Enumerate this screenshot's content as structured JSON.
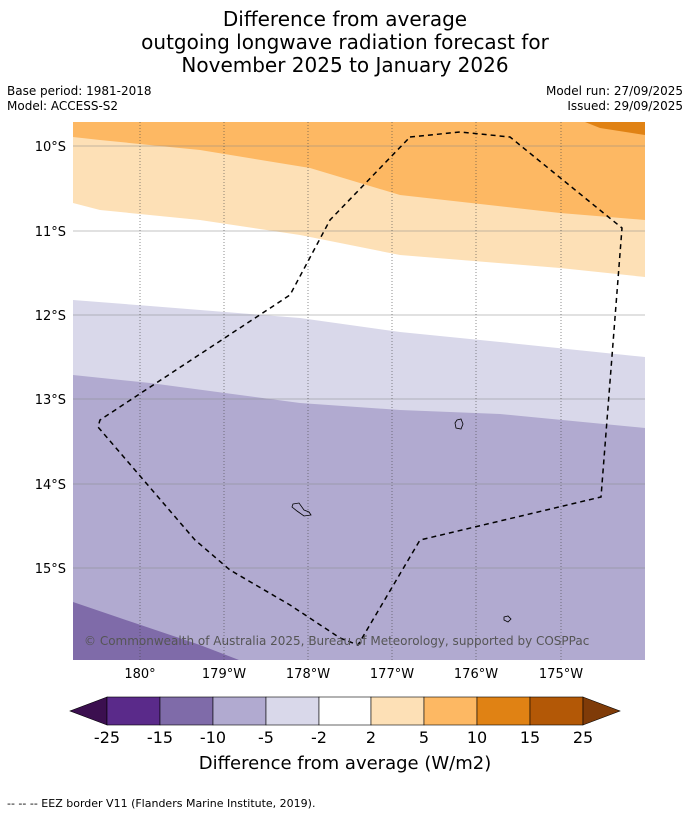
{
  "title": {
    "line1": "Difference from average",
    "line2": "outgoing longwave radiation forecast for",
    "line3": "November 2025 to January 2026"
  },
  "meta": {
    "base_period": "Base period: 1981-2018",
    "model": "Model: ACCESS-S2",
    "model_run": "Model run: 27/09/2025",
    "issued": "Issued: 29/09/2025"
  },
  "map": {
    "lat_labels": [
      "10°S",
      "11°S",
      "12°S",
      "13°S",
      "14°S",
      "15°S"
    ],
    "lon_labels": [
      "180°",
      "179°W",
      "178°W",
      "177°W",
      "176°W",
      "175°W"
    ],
    "copyright": "© Commonwealth of Australia 2025, Bureau of Meteorology, supported by COSPPac",
    "eez_note": "--  --  -- EEZ border V11 (Flanders Marine Institute, 2019)."
  },
  "colorbar": {
    "title": "Difference from average (W/m2)",
    "ticks": [
      "-25",
      "-15",
      "-10",
      "-5",
      "-2",
      "2",
      "5",
      "10",
      "15",
      "25"
    ],
    "colors": {
      "under": "#3b0f4f",
      "bins": [
        "#5a2a8a",
        "#7f6ba9",
        "#b1aad0",
        "#d9d8ea",
        "#ffffff",
        "#fde0b6",
        "#fdb863",
        "#e08214",
        "#b35806"
      ],
      "over": "#7f3b08"
    }
  }
}
